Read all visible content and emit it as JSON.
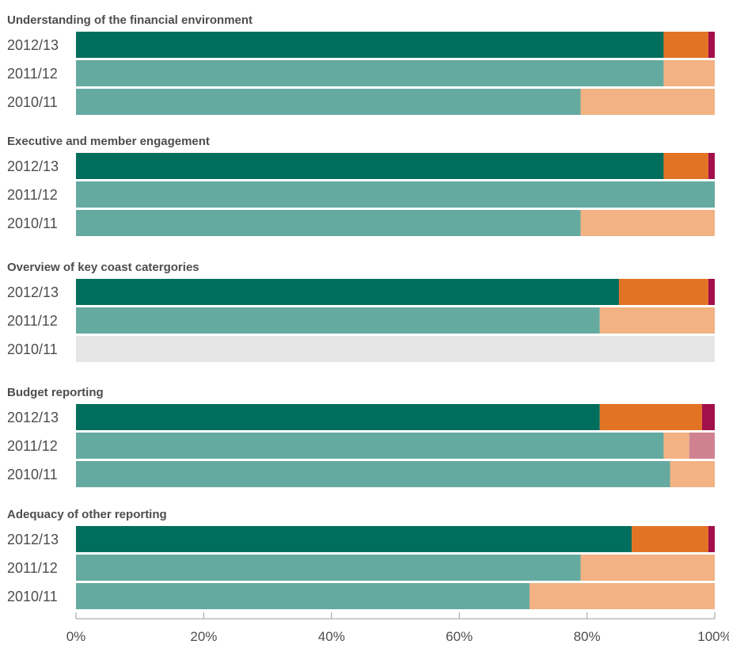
{
  "chart_data": {
    "type": "bar",
    "orientation": "horizontal",
    "stacked": true,
    "xlim": [
      0,
      100
    ],
    "x_ticks": [
      "0%",
      "20%",
      "40%",
      "60%",
      "80%",
      "100%"
    ],
    "grid": false,
    "groups": [
      {
        "title": "Understanding of the financial environment",
        "rows": [
          {
            "year": "2012/13",
            "segments": [
              92,
              7,
              1
            ],
            "colors": [
              "#006e5c",
              "#e27325",
              "#a1104a"
            ]
          },
          {
            "year": "2011/12",
            "segments": [
              92,
              8
            ],
            "colors": [
              "#64aaa0",
              "#f2b283"
            ]
          },
          {
            "year": "2010/11",
            "segments": [
              79,
              21
            ],
            "colors": [
              "#64aaa0",
              "#f2b283"
            ]
          }
        ]
      },
      {
        "title": "Executive and member engagement",
        "rows": [
          {
            "year": "2012/13",
            "segments": [
              92,
              7,
              1
            ],
            "colors": [
              "#006e5c",
              "#e27325",
              "#a1104a"
            ]
          },
          {
            "year": "2011/12",
            "segments": [
              100
            ],
            "colors": [
              "#64aaa0"
            ]
          },
          {
            "year": "2010/11",
            "segments": [
              79,
              21
            ],
            "colors": [
              "#64aaa0",
              "#f2b283"
            ]
          }
        ]
      },
      {
        "title": "Overview of key coast catergories",
        "rows": [
          {
            "year": "2012/13",
            "segments": [
              85,
              14,
              1
            ],
            "colors": [
              "#006e5c",
              "#e27325",
              "#a1104a"
            ]
          },
          {
            "year": "2011/12",
            "segments": [
              82,
              18
            ],
            "colors": [
              "#64aaa0",
              "#f2b283"
            ]
          },
          {
            "year": "2010/11",
            "segments": [
              100
            ],
            "colors": [
              "#e6e6e7"
            ]
          }
        ]
      },
      {
        "title": "Budget reporting",
        "rows": [
          {
            "year": "2012/13",
            "segments": [
              82,
              16,
              2
            ],
            "colors": [
              "#006e5c",
              "#e27325",
              "#a1104a"
            ]
          },
          {
            "year": "2011/12",
            "segments": [
              92,
              4,
              4
            ],
            "colors": [
              "#64aaa0",
              "#f2b283",
              "#d0818f"
            ]
          },
          {
            "year": "2010/11",
            "segments": [
              93,
              7
            ],
            "colors": [
              "#64aaa0",
              "#f2b283"
            ]
          }
        ]
      },
      {
        "title": "Adequacy of other reporting",
        "rows": [
          {
            "year": "2012/13",
            "segments": [
              87,
              12,
              1
            ],
            "colors": [
              "#006e5c",
              "#e27325",
              "#a1104a"
            ]
          },
          {
            "year": "2011/12",
            "segments": [
              79,
              21
            ],
            "colors": [
              "#64aaa0",
              "#f2b283"
            ]
          },
          {
            "year": "2010/11",
            "segments": [
              71,
              29
            ],
            "colors": [
              "#64aaa0",
              "#f2b283"
            ]
          }
        ]
      }
    ]
  }
}
